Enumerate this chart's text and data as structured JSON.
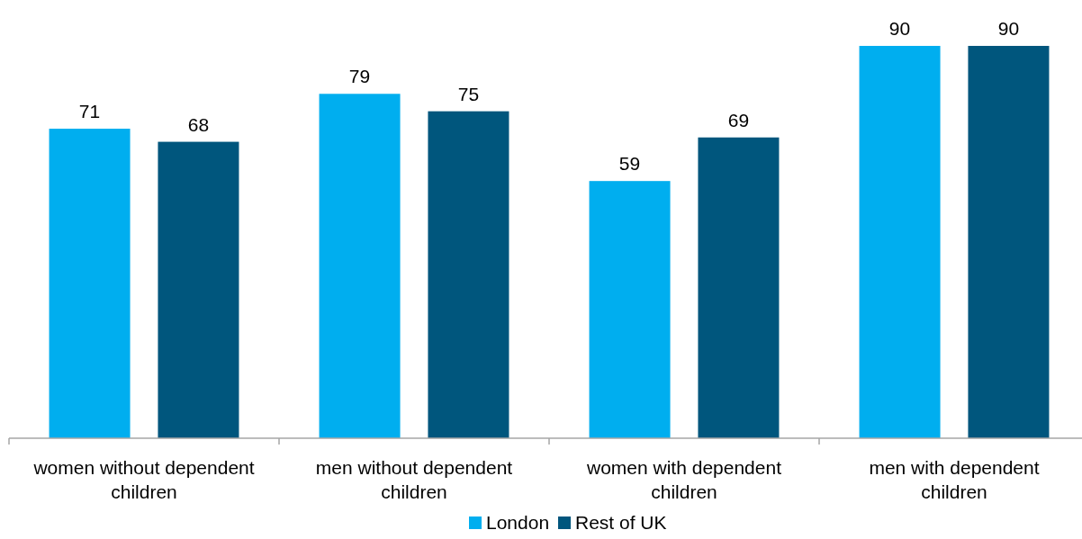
{
  "chart_data": {
    "type": "bar",
    "categories": [
      "women without dependent children",
      "men without dependent children",
      "women with dependent children",
      "men with dependent children"
    ],
    "series": [
      {
        "name": "London",
        "color": "#00aeef",
        "values": [
          71,
          79,
          59,
          90
        ]
      },
      {
        "name": "Rest of UK",
        "color": "#00567d",
        "values": [
          68,
          75,
          69,
          90
        ]
      }
    ],
    "tick_labels": "x",
    "data_labels": true,
    "legend": "bottom"
  }
}
